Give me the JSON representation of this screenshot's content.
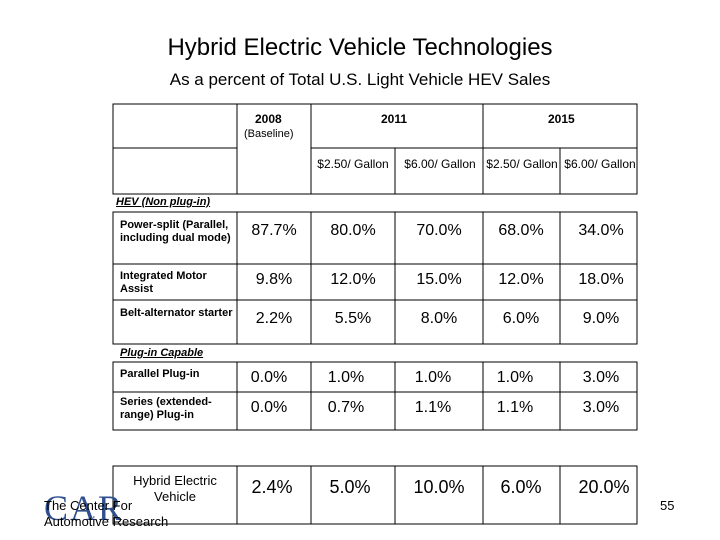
{
  "title": "Hybrid Electric Vehicle Technologies",
  "subtitle": "As a percent of Total U.S. Light Vehicle HEV Sales",
  "years": {
    "y2008": "2008",
    "y2011": "2011",
    "y2015": "2015"
  },
  "baseline_note": "(Baseline)",
  "price_cols": [
    "$2.50/ Gallon",
    "$6.00/ Gallon",
    "$2.50/ Gallon",
    "$6.00/ Gallon"
  ],
  "sections": {
    "hev": "HEV (Non plug-in)",
    "plugin": "Plug-in Capable"
  },
  "rows": [
    {
      "label": "Power-split (Parallel, including dual mode)",
      "values": [
        "87.7%",
        "80.0%",
        "70.0%",
        "68.0%",
        "34.0%"
      ]
    },
    {
      "label": "Integrated Motor Assist",
      "values": [
        "9.8%",
        "12.0%",
        "15.0%",
        "12.0%",
        "18.0%"
      ]
    },
    {
      "label": "Belt-alternator starter",
      "values": [
        "2.2%",
        "5.5%",
        "8.0%",
        "6.0%",
        "9.0%"
      ]
    },
    {
      "label": "Parallel Plug-in",
      "values": [
        "0.0%",
        "1.0%",
        "1.0%",
        "1.0%",
        "3.0%"
      ]
    },
    {
      "label": "Series (extended-range) Plug-in",
      "values": [
        "0.0%",
        "0.7%",
        "1.1%",
        "1.1%",
        "3.0%"
      ]
    }
  ],
  "summary": {
    "label": "Hybrid Electric Vehicle",
    "values": [
      "2.4%",
      "5.0%",
      "10.0%",
      "6.0%",
      "20.0%"
    ]
  },
  "footer": {
    "logo": "CAR",
    "org": "The Center For Automotive Research",
    "page": "55"
  }
}
